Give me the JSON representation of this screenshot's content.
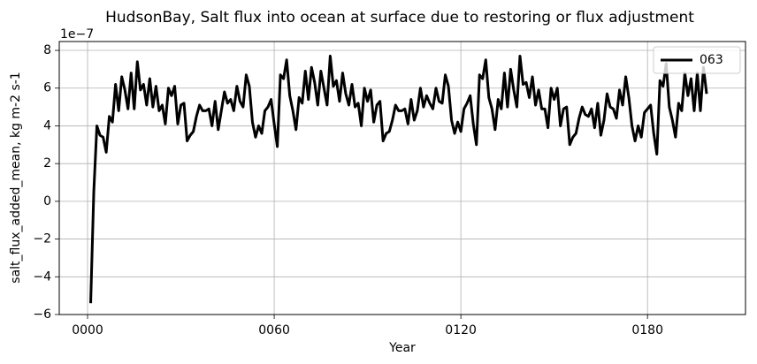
{
  "chart_data": {
    "type": "line",
    "title": "HudsonBay, Salt flux into ocean at surface due to restoring or flux adjustment",
    "x_label": "Year",
    "y_label": "salt_flux_added_mean, kg m-2 s-1",
    "y_offset_label": "1e−7",
    "x": [
      1,
      2,
      3,
      4,
      5,
      6,
      7,
      8,
      9,
      10,
      11,
      12,
      13,
      14,
      15,
      16,
      17,
      18,
      19,
      20,
      21,
      22,
      23,
      24,
      25,
      26,
      27,
      28,
      29,
      30,
      31,
      32,
      33,
      34,
      35,
      36,
      37,
      38,
      39,
      40,
      41,
      42,
      43,
      44,
      45,
      46,
      47,
      48,
      49,
      50,
      51,
      52,
      53,
      54,
      55,
      56,
      57,
      58,
      59,
      60,
      61,
      62,
      63,
      64,
      65,
      66,
      67,
      68,
      69,
      70,
      71,
      72,
      73,
      74,
      75,
      76,
      77,
      78,
      79,
      80,
      81,
      82,
      83,
      84,
      85,
      86,
      87,
      88,
      89,
      90,
      91,
      92,
      93,
      94,
      95,
      96,
      97,
      98,
      99,
      100,
      101,
      102,
      103,
      104,
      105,
      106,
      107,
      108,
      109,
      110,
      111,
      112,
      113,
      114,
      115,
      116,
      117,
      118,
      119,
      120,
      121,
      122,
      123,
      124,
      125,
      126,
      127,
      128,
      129,
      130,
      131,
      132,
      133,
      134,
      135,
      136,
      137,
      138,
      139,
      140,
      141,
      142,
      143,
      144,
      145,
      146,
      147,
      148,
      149,
      150,
      151,
      152,
      153,
      154,
      155,
      156,
      157,
      158,
      159,
      160,
      161,
      162,
      163,
      164,
      165,
      166,
      167,
      168,
      169,
      170,
      171,
      172,
      173,
      174,
      175,
      176,
      177,
      178,
      179,
      180,
      181,
      182,
      183,
      184,
      185,
      186,
      187,
      188,
      189,
      190,
      191,
      192,
      193,
      194,
      195,
      196,
      197,
      198,
      199
    ],
    "series": [
      {
        "name": "063",
        "color": "#000000",
        "values": [
          -5.4,
          0.5,
          4.0,
          3.5,
          3.4,
          2.6,
          4.5,
          4.2,
          6.2,
          4.8,
          6.6,
          5.9,
          4.9,
          6.8,
          4.9,
          7.4,
          5.9,
          6.2,
          5.1,
          6.5,
          5.0,
          6.1,
          4.8,
          5.1,
          4.1,
          6.0,
          5.6,
          6.1,
          4.1,
          5.1,
          5.2,
          3.2,
          3.5,
          3.7,
          4.5,
          5.1,
          4.8,
          4.8,
          4.9,
          4.0,
          5.3,
          3.8,
          4.8,
          5.8,
          5.2,
          5.4,
          4.8,
          6.1,
          5.3,
          5.0,
          6.7,
          6.1,
          4.2,
          3.4,
          4.0,
          3.6,
          4.8,
          5.0,
          5.4,
          4.1,
          2.9,
          6.7,
          6.5,
          7.5,
          5.6,
          4.8,
          3.8,
          5.5,
          5.2,
          6.9,
          5.4,
          7.1,
          6.3,
          5.1,
          6.9,
          6.0,
          5.1,
          7.7,
          6.1,
          6.4,
          5.3,
          6.8,
          5.7,
          5.1,
          6.2,
          5.0,
          5.2,
          4.0,
          6.0,
          5.3,
          5.9,
          4.2,
          5.1,
          5.3,
          3.2,
          3.6,
          3.7,
          4.3,
          5.1,
          4.8,
          4.8,
          4.9,
          4.1,
          5.4,
          4.3,
          4.8,
          6.0,
          5.0,
          5.6,
          5.2,
          4.9,
          6.0,
          5.3,
          5.2,
          6.7,
          6.1,
          4.3,
          3.6,
          4.2,
          3.7,
          4.9,
          5.2,
          5.6,
          4.1,
          3.0,
          6.7,
          6.5,
          7.5,
          5.5,
          4.9,
          3.8,
          5.4,
          4.9,
          6.8,
          5.0,
          7.0,
          5.9,
          5.0,
          7.7,
          6.2,
          6.3,
          5.5,
          6.6,
          5.1,
          5.9,
          4.9,
          4.9,
          3.9,
          6.0,
          5.4,
          6.0,
          4.0,
          4.9,
          5.0,
          3.0,
          3.4,
          3.6,
          4.4,
          5.0,
          4.6,
          4.5,
          4.9,
          3.9,
          5.2,
          3.5,
          4.3,
          5.7,
          5.0,
          4.9,
          4.4,
          5.9,
          5.1,
          6.6,
          5.5,
          4.0,
          3.2,
          4.0,
          3.4,
          4.7,
          4.9,
          5.1,
          3.6,
          2.5,
          6.4,
          6.1,
          7.3,
          5.0,
          4.3,
          3.4,
          5.2,
          4.8,
          6.8,
          5.6,
          6.5,
          4.8,
          6.8,
          4.8,
          7.1,
          5.7
        ]
      }
    ],
    "xlim": [
      -9.1,
      211.5
    ],
    "ylim": [
      -6.0,
      8.47
    ],
    "xticks": [
      {
        "value": 0,
        "label": "0000"
      },
      {
        "value": 60,
        "label": "0060"
      },
      {
        "value": 120,
        "label": "0120"
      },
      {
        "value": 180,
        "label": "0180"
      }
    ],
    "yticks": [
      {
        "value": -6,
        "label": "−6"
      },
      {
        "value": -4,
        "label": "−4"
      },
      {
        "value": -2,
        "label": "−2"
      },
      0,
      2,
      4,
      6,
      8
    ],
    "grid": true,
    "legend": "upper right"
  }
}
